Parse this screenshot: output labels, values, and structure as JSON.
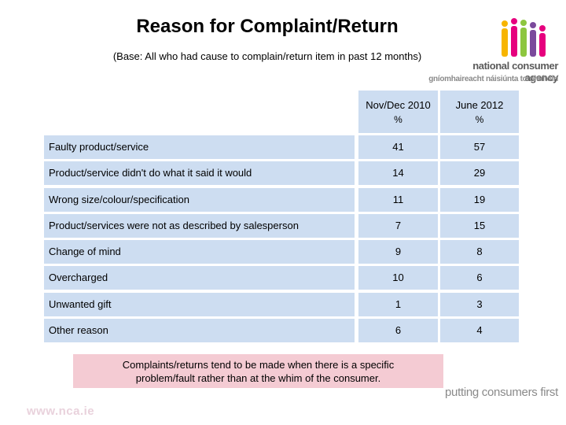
{
  "title": "Reason for Complaint/Return",
  "subtitle": "(Base: All who had cause to complain/return item in past 12 months)",
  "logo": {
    "name": "national consumer agency",
    "irish_name": "gníomhaireacht náisiúnta tomhaltóirí",
    "colors": [
      "#f7b500",
      "#e6007e",
      "#8dc63f",
      "#7b4a9c",
      "#e6007e"
    ]
  },
  "table": {
    "columns": [
      {
        "label": "Nov/Dec 2010",
        "unit": "%"
      },
      {
        "label": "June 2012",
        "unit": "%"
      }
    ],
    "rows": [
      {
        "label": "Faulty product/service",
        "values": [
          "41",
          "57"
        ]
      },
      {
        "label": "Product/service didn't do what it said it would",
        "values": [
          "14",
          "29"
        ]
      },
      {
        "label": "Wrong size/colour/specification",
        "values": [
          "11",
          "19"
        ]
      },
      {
        "label": "Product/services were not as described by salesperson",
        "values": [
          "7",
          "15"
        ]
      },
      {
        "label": "Change of mind",
        "values": [
          "9",
          "8"
        ]
      },
      {
        "label": "Overcharged",
        "values": [
          "10",
          "6"
        ]
      },
      {
        "label": "Unwanted gift",
        "values": [
          "1",
          "3"
        ]
      },
      {
        "label": "Other reason",
        "values": [
          "6",
          "4"
        ]
      }
    ]
  },
  "callout": {
    "line1": "Complaints/returns tend to be made when there is a specific",
    "line2": "problem/fault rather than at the whim of the consumer."
  },
  "tagline": "putting consumers first",
  "url": "www.nca.ie",
  "colors": {
    "table_bg": "#cdddf1",
    "callout_bg": "#f4cbd3"
  }
}
